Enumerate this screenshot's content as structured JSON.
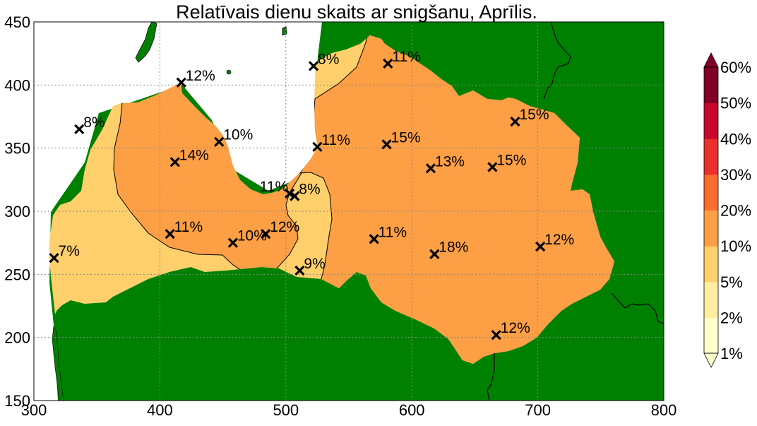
{
  "chart_data": {
    "type": "map",
    "title": "Relatīvais dienu skaits ar snigšanu, Aprīlis.",
    "xlim": [
      300,
      800
    ],
    "ylim": [
      150,
      450
    ],
    "xticks": [
      "300",
      "400",
      "500",
      "600",
      "700",
      "800"
    ],
    "yticks": [
      "150",
      "200",
      "250",
      "300",
      "350",
      "400",
      "450"
    ],
    "grid": true,
    "colors": {
      "land": "#008000",
      "sea": "#ffffff",
      "zone_5_10": "#fecf6b",
      "zone_10_20": "#fd9f44"
    },
    "stations": [
      {
        "x": 316,
        "y": 263,
        "label": "7%"
      },
      {
        "x": 336,
        "y": 365,
        "label": "8%"
      },
      {
        "x": 417,
        "y": 402,
        "label": "12%"
      },
      {
        "x": 447,
        "y": 355,
        "label": "10%"
      },
      {
        "x": 412,
        "y": 339,
        "label": "14%"
      },
      {
        "x": 408,
        "y": 282,
        "label": "11%"
      },
      {
        "x": 458,
        "y": 275,
        "label": "10%"
      },
      {
        "x": 484,
        "y": 282,
        "label": "12%"
      },
      {
        "x": 503,
        "y": 314,
        "label": "11%",
        "side": "left"
      },
      {
        "x": 507,
        "y": 312,
        "label": "8%"
      },
      {
        "x": 511,
        "y": 253,
        "label": "9%"
      },
      {
        "x": 522,
        "y": 415,
        "label": "8%"
      },
      {
        "x": 525,
        "y": 351,
        "label": "11%"
      },
      {
        "x": 581,
        "y": 417,
        "label": "11%"
      },
      {
        "x": 580,
        "y": 353,
        "label": "15%"
      },
      {
        "x": 615,
        "y": 334,
        "label": "13%"
      },
      {
        "x": 664,
        "y": 335,
        "label": "15%"
      },
      {
        "x": 682,
        "y": 371,
        "label": "15%"
      },
      {
        "x": 570,
        "y": 278,
        "label": "11%"
      },
      {
        "x": 618,
        "y": 266,
        "label": "18%"
      },
      {
        "x": 702,
        "y": 272,
        "label": "12%"
      },
      {
        "x": 667,
        "y": 202,
        "label": "12%"
      }
    ],
    "colorbar": {
      "labels": [
        "1%",
        "2%",
        "5%",
        "10%",
        "20%",
        "30%",
        "40%",
        "50%",
        "60%"
      ],
      "colors": [
        "#ffffcc",
        "#ffeda0",
        "#fecf6b",
        "#fd9f44",
        "#fd6c30",
        "#e9302a",
        "#c8082a",
        "#800026"
      ],
      "extend": "both"
    }
  }
}
